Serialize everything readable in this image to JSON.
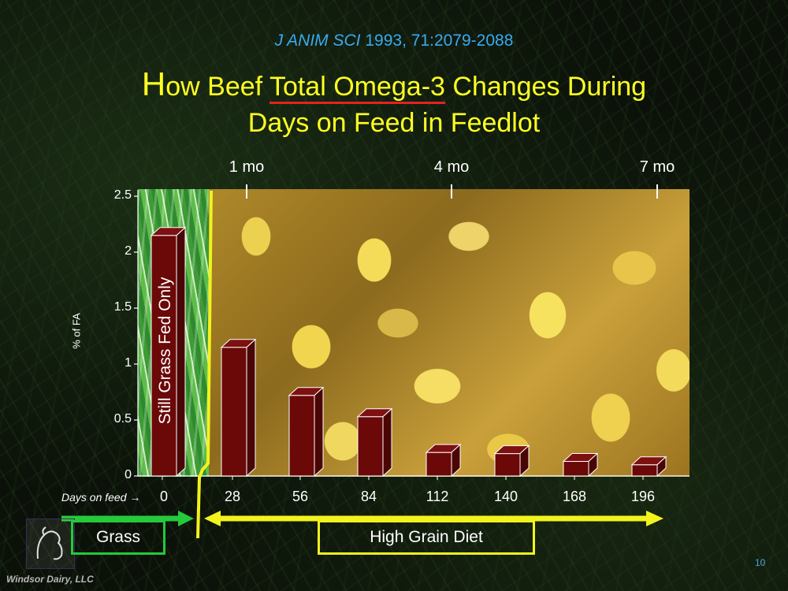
{
  "citation": {
    "journal": "J ANIM SCI",
    "rest": " 1993, 71:2079-2088"
  },
  "title": {
    "first_letter": "H",
    "part1": "ow Beef ",
    "underlined": "Total Omega-3",
    "part2": " Changes During",
    "line2": "Days on Feed in Feedlot"
  },
  "months": [
    {
      "label": "1 mo",
      "day": 28
    },
    {
      "label": "4 mo",
      "day": 112
    },
    {
      "label": "7 mo",
      "day": 196
    }
  ],
  "bar_label_grass": "Still  Grass  Fed  Only",
  "days_on_feed_label": "Days on feed →",
  "grass_label": "Grass",
  "grain_label": "High  Grain  Diet",
  "footer": "Windsor Dairy, LLC",
  "page_number": "10",
  "colors": {
    "bar": "#6b0808",
    "title": "#ffff22",
    "citation": "#39a9f0",
    "grass_arrow": "#25c93b",
    "grain_arrow": "#f2f21e"
  },
  "chart_data": {
    "type": "bar",
    "categories": [
      "0",
      "28",
      "56",
      "84",
      "112",
      "140",
      "168",
      "196"
    ],
    "values": [
      2.15,
      1.15,
      0.72,
      0.53,
      0.21,
      0.2,
      0.13,
      0.1
    ],
    "xlabel": "Days on feed",
    "ylabel": "% of FA",
    "ylim": [
      0,
      2.5
    ],
    "yticks": [
      "0",
      "0.5",
      "1",
      "1.5",
      "2",
      "2.5"
    ]
  }
}
